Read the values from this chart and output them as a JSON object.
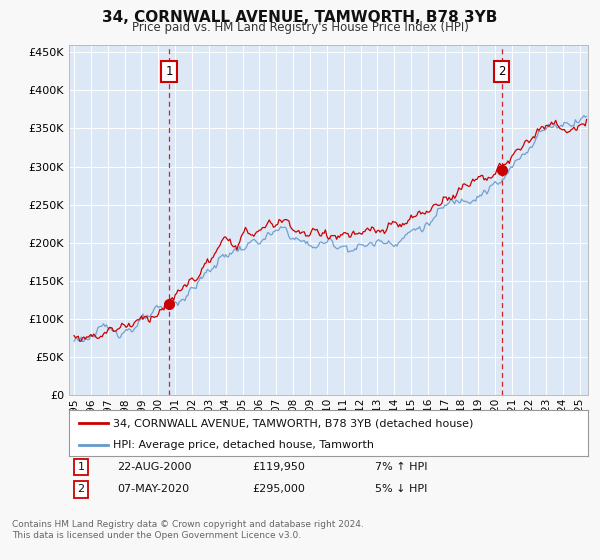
{
  "title": "34, CORNWALL AVENUE, TAMWORTH, B78 3YB",
  "subtitle": "Price paid vs. HM Land Registry's House Price Index (HPI)",
  "legend_line1": "34, CORNWALL AVENUE, TAMWORTH, B78 3YB (detached house)",
  "legend_line2": "HPI: Average price, detached house, Tamworth",
  "annotation1_label": "1",
  "annotation1_date": "22-AUG-2000",
  "annotation1_price": "£119,950",
  "annotation1_hpi": "7% ↑ HPI",
  "annotation1_year": 2000.65,
  "annotation1_value": 119950,
  "annotation2_label": "2",
  "annotation2_date": "07-MAY-2020",
  "annotation2_price": "£295,000",
  "annotation2_hpi": "5% ↓ HPI",
  "annotation2_year": 2020.37,
  "annotation2_value": 295000,
  "footer_line1": "Contains HM Land Registry data © Crown copyright and database right 2024.",
  "footer_line2": "This data is licensed under the Open Government Licence v3.0.",
  "hpi_color": "#6699cc",
  "price_color": "#cc0000",
  "fig_bg_color": "#f8f8f8",
  "plot_bg_color": "#dce8f5",
  "grid_color": "#ffffff",
  "annotation_box_color": "#cc0000",
  "ylim": [
    0,
    460000
  ],
  "yticks": [
    0,
    50000,
    100000,
    150000,
    200000,
    250000,
    300000,
    350000,
    400000,
    450000
  ],
  "xlim_start": 1994.7,
  "xlim_end": 2025.5,
  "xticks": [
    1995,
    1996,
    1997,
    1998,
    1999,
    2000,
    2001,
    2002,
    2003,
    2004,
    2005,
    2006,
    2007,
    2008,
    2009,
    2010,
    2011,
    2012,
    2013,
    2014,
    2015,
    2016,
    2017,
    2018,
    2019,
    2020,
    2021,
    2022,
    2023,
    2024,
    2025
  ]
}
